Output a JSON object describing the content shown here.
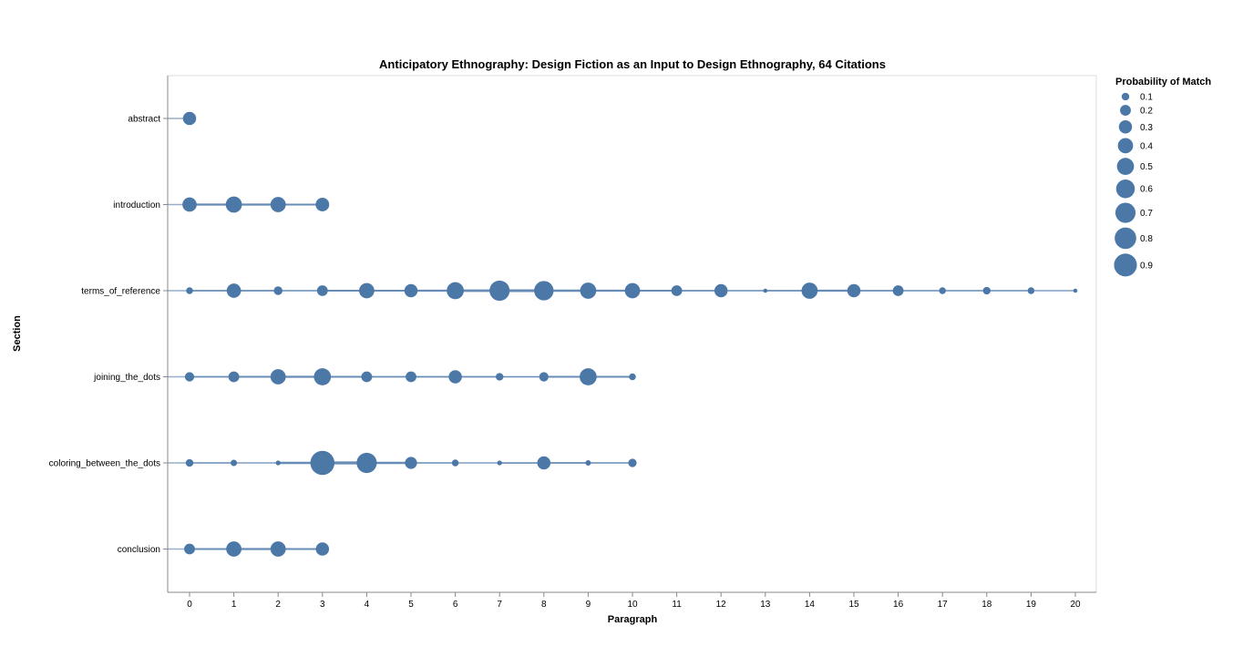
{
  "chart_data": {
    "type": "scatter",
    "title": "Anticipatory Ethnography: Design Fiction as an Input to Design Ethnography, 64 Citations",
    "xlabel": "Paragraph",
    "ylabel": "Section",
    "xlim": [
      0,
      20
    ],
    "x_ticks": [
      0,
      1,
      2,
      3,
      4,
      5,
      6,
      7,
      8,
      9,
      10,
      11,
      12,
      13,
      14,
      15,
      16,
      17,
      18,
      19,
      20
    ],
    "categories": [
      "abstract",
      "introduction",
      "terms_of_reference",
      "joining_the_dots",
      "coloring_between_the_dots",
      "conclusion"
    ],
    "grid": false,
    "mark_color": "#4c78a8",
    "legend": {
      "title": "Probability of Match",
      "placement": "top-right",
      "values": [
        0.1,
        0.2,
        0.3,
        0.4,
        0.5,
        0.6,
        0.7,
        0.8,
        0.9
      ]
    },
    "series": [
      {
        "section": "abstract",
        "points": [
          {
            "x": 0,
            "p": 0.3
          }
        ]
      },
      {
        "section": "introduction",
        "points": [
          {
            "x": 0,
            "p": 0.35
          },
          {
            "x": 1,
            "p": 0.45
          },
          {
            "x": 2,
            "p": 0.4
          },
          {
            "x": 3,
            "p": 0.32
          }
        ]
      },
      {
        "section": "terms_of_reference",
        "points": [
          {
            "x": 0,
            "p": 0.08
          },
          {
            "x": 1,
            "p": 0.35
          },
          {
            "x": 2,
            "p": 0.13
          },
          {
            "x": 3,
            "p": 0.2
          },
          {
            "x": 4,
            "p": 0.4
          },
          {
            "x": 5,
            "p": 0.3
          },
          {
            "x": 6,
            "p": 0.5
          },
          {
            "x": 7,
            "p": 0.7
          },
          {
            "x": 8,
            "p": 0.65
          },
          {
            "x": 9,
            "p": 0.45
          },
          {
            "x": 10,
            "p": 0.4
          },
          {
            "x": 11,
            "p": 0.2
          },
          {
            "x": 12,
            "p": 0.3
          },
          {
            "x": 13,
            "p": 0.03
          },
          {
            "x": 14,
            "p": 0.45
          },
          {
            "x": 15,
            "p": 0.3
          },
          {
            "x": 16,
            "p": 0.2
          },
          {
            "x": 17,
            "p": 0.08
          },
          {
            "x": 18,
            "p": 0.1
          },
          {
            "x": 19,
            "p": 0.08
          },
          {
            "x": 20,
            "p": 0.03
          }
        ]
      },
      {
        "section": "joining_the_dots",
        "points": [
          {
            "x": 0,
            "p": 0.15
          },
          {
            "x": 1,
            "p": 0.2
          },
          {
            "x": 2,
            "p": 0.4
          },
          {
            "x": 3,
            "p": 0.5
          },
          {
            "x": 4,
            "p": 0.2
          },
          {
            "x": 5,
            "p": 0.2
          },
          {
            "x": 6,
            "p": 0.3
          },
          {
            "x": 7,
            "p": 0.1
          },
          {
            "x": 8,
            "p": 0.15
          },
          {
            "x": 9,
            "p": 0.5
          },
          {
            "x": 10,
            "p": 0.08
          }
        ]
      },
      {
        "section": "coloring_between_the_dots",
        "points": [
          {
            "x": 0,
            "p": 0.1
          },
          {
            "x": 1,
            "p": 0.07
          },
          {
            "x": 2,
            "p": 0.04
          },
          {
            "x": 3,
            "p": 1.0
          },
          {
            "x": 4,
            "p": 0.7
          },
          {
            "x": 5,
            "p": 0.25
          },
          {
            "x": 6,
            "p": 0.08
          },
          {
            "x": 7,
            "p": 0.04
          },
          {
            "x": 8,
            "p": 0.3
          },
          {
            "x": 9,
            "p": 0.05
          },
          {
            "x": 10,
            "p": 0.12
          }
        ]
      },
      {
        "section": "conclusion",
        "points": [
          {
            "x": 0,
            "p": 0.2
          },
          {
            "x": 1,
            "p": 0.4
          },
          {
            "x": 2,
            "p": 0.4
          },
          {
            "x": 3,
            "p": 0.3
          }
        ]
      }
    ]
  }
}
